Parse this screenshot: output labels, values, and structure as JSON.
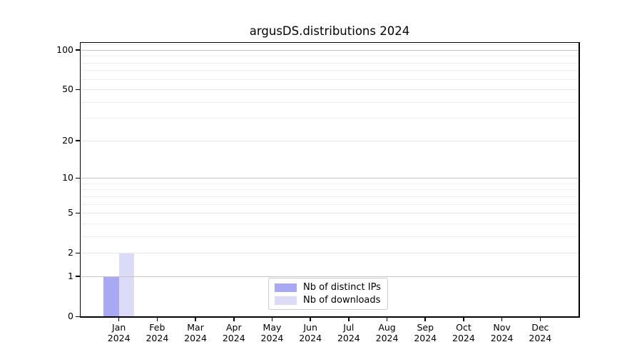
{
  "figure": {
    "title": "argusDS.distributions 2024",
    "background": "#ffffff"
  },
  "chart_data": {
    "type": "bar",
    "title": "argusDS.distributions 2024",
    "year_label": "2024",
    "months": [
      "Jan",
      "Feb",
      "Mar",
      "Apr",
      "May",
      "Jun",
      "Jul",
      "Aug",
      "Sep",
      "Oct",
      "Nov",
      "Dec"
    ],
    "categories": [
      "Jan 2024",
      "Feb 2024",
      "Mar 2024",
      "Apr 2024",
      "May 2024",
      "Jun 2024",
      "Jul 2024",
      "Aug 2024",
      "Sep 2024",
      "Oct 2024",
      "Nov 2024",
      "Dec 2024"
    ],
    "series": [
      {
        "name": "Nb of distinct IPs",
        "color": "#a9a9f3",
        "values": [
          1,
          0,
          0,
          0,
          0,
          0,
          0,
          0,
          0,
          0,
          0,
          0
        ]
      },
      {
        "name": "Nb of downloads",
        "color": "#dbdbf8",
        "values": [
          2,
          0,
          0,
          0,
          0,
          0,
          0,
          0,
          0,
          0,
          0,
          0
        ]
      }
    ],
    "y_scale": "log1p",
    "y_major_ticks": [
      0,
      1,
      2,
      5,
      10,
      20,
      50,
      100
    ],
    "y_tick_labels": [
      "0",
      "1",
      "2",
      "5",
      "10",
      "20",
      "50",
      "100"
    ],
    "y_strong_grid": [
      1,
      10,
      100
    ],
    "y_light_grid": [
      2,
      5,
      20,
      50
    ],
    "y_minor_grid": [
      3,
      4,
      6,
      7,
      8,
      9,
      30,
      40,
      60,
      70,
      80,
      90,
      110
    ],
    "ylim": [
      0,
      113
    ],
    "grid": true,
    "legend": {
      "position": "lower center",
      "entries": [
        "Nb of distinct IPs",
        "Nb of downloads"
      ]
    }
  },
  "colors": {
    "strong_grid": "#c3c3c3",
    "light_grid": "#e8e8e8",
    "minor_grid": "#efefef",
    "axis": "#000000",
    "text": "#000000",
    "legend_border": "#cbcbcb"
  }
}
